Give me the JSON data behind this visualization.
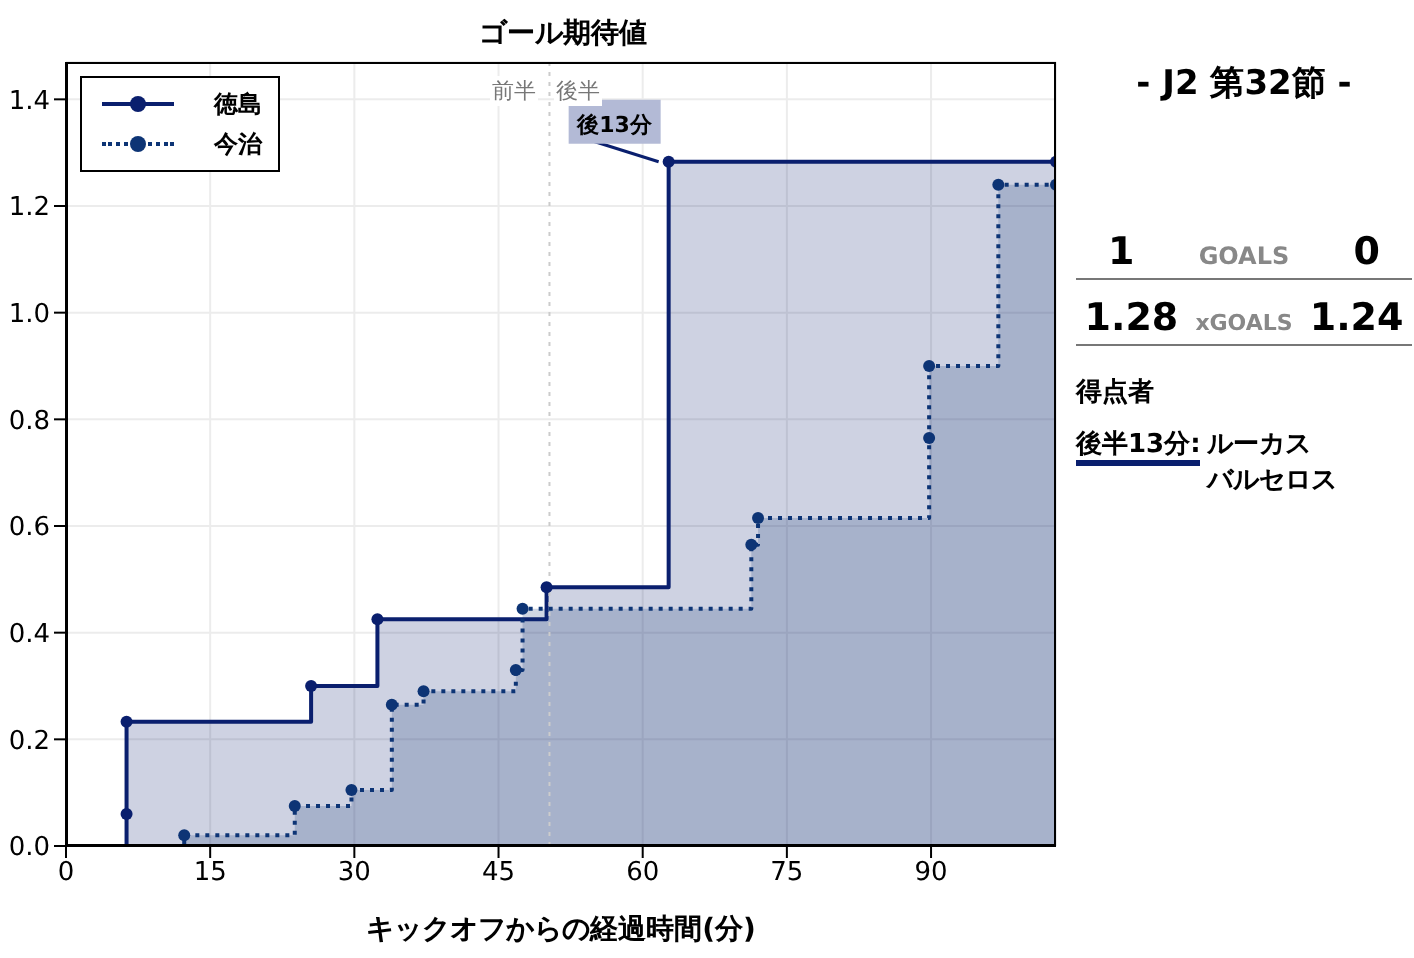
{
  "chart_data": {
    "type": "step",
    "title": "ゴール期待値",
    "xlabel": "キックオフからの経過時間(分)",
    "series": [
      {
        "name": "徳島",
        "color": "#0a1f6e",
        "line_style": "solid",
        "x": [
          0,
          6.3,
          6.3,
          25.5,
          32.4,
          50,
          62.7,
          103
        ],
        "values": [
          0,
          0.06,
          0.233,
          0.3,
          0.425,
          0.485,
          1.283,
          1.283
        ]
      },
      {
        "name": "今治",
        "color": "#0d3475",
        "line_style": "dotted",
        "x": [
          0,
          12.3,
          23.8,
          29.7,
          33.9,
          37.2,
          46.8,
          47.5,
          71.3,
          72,
          89.8,
          89.8,
          97,
          103
        ],
        "values": [
          0,
          0.02,
          0.075,
          0.105,
          0.265,
          0.29,
          0.33,
          0.445,
          0.565,
          0.615,
          0.765,
          0.9,
          1.24,
          1.24
        ]
      }
    ],
    "xlim": [
      0,
      103
    ],
    "xticks": [
      0,
      15,
      30,
      45,
      60,
      75,
      90
    ],
    "ylim": [
      0,
      1.47
    ],
    "yticks": [
      {
        "value": 0,
        "label": "0.0"
      },
      0.2,
      0.4,
      0.6,
      0.8,
      {
        "value": 1,
        "label": "1.0"
      },
      1.2,
      1.4
    ],
    "grid": true,
    "legend": "top left",
    "marker": "circle",
    "ref_lines": [
      {
        "axis": "x",
        "value": 50.3,
        "label": null,
        "color": "#cccccc",
        "line_style": "dotted"
      }
    ],
    "annotations": [
      {
        "text": "後13分",
        "x": 62.7,
        "y": 1.283
      },
      "前半",
      "後半",
      "- J2 第32節 -",
      "1",
      "GOALS",
      "0",
      "1.28",
      "xGOALS",
      "1.24",
      "得点者",
      "後半13分:",
      "ルーカスバルセロス"
    ]
  }
}
